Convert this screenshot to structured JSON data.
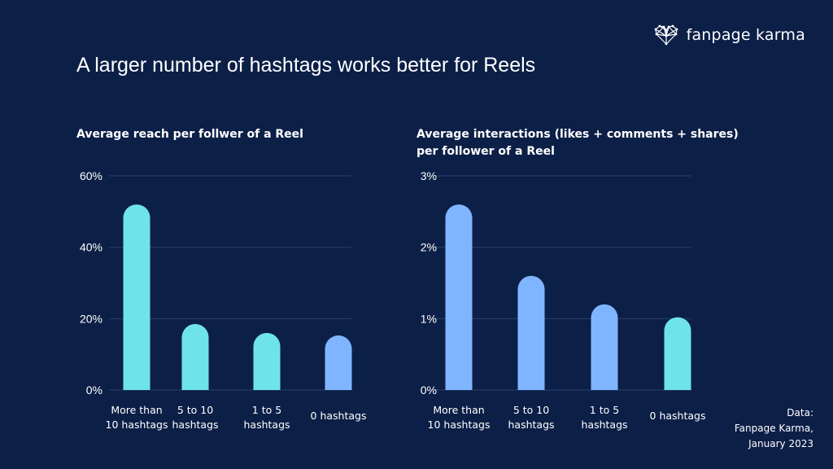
{
  "brand": {
    "name": "fanpage karma",
    "logo_icon": "heart-network-icon"
  },
  "title": "A larger number of hashtags works better for Reels",
  "colors": {
    "background": "#0c1f47",
    "cyan": "#6ee4ea",
    "blue": "#7fb5ff",
    "grid": "#2b3f68"
  },
  "footnote": {
    "line1": "Data:",
    "line2": "Fanpage Karma,",
    "line3": "January 2023"
  },
  "chart_data": [
    {
      "type": "bar",
      "title_lines": [
        "Average reach per follwer of a Reel"
      ],
      "categories": [
        [
          "More than",
          "10 hashtags"
        ],
        [
          "5 to 10",
          "hashtags"
        ],
        [
          "1 to 5",
          "hashtags"
        ],
        [
          "0 hashtags"
        ]
      ],
      "values": [
        52,
        18.5,
        16,
        15.3
      ],
      "bar_colors": [
        "#6ee4ea",
        "#6ee4ea",
        "#6ee4ea",
        "#7fb5ff"
      ],
      "ylim": [
        0,
        60
      ],
      "yticks": [
        0,
        20,
        40,
        60
      ],
      "ytick_labels": [
        "0%",
        "20%",
        "40%",
        "60%"
      ],
      "grid": true
    },
    {
      "type": "bar",
      "title_lines": [
        "Average interactions (likes + comments + shares)",
        "per follower of a Reel"
      ],
      "categories": [
        [
          "More than",
          "10 hashtags"
        ],
        [
          "5 to 10",
          "hashtags"
        ],
        [
          "1 to 5",
          "hashtags"
        ],
        [
          "0 hashtags"
        ]
      ],
      "values": [
        2.6,
        1.6,
        1.2,
        1.02
      ],
      "bar_colors": [
        "#7fb5ff",
        "#7fb5ff",
        "#7fb5ff",
        "#6ee4ea"
      ],
      "ylim": [
        0,
        3
      ],
      "yticks": [
        0,
        1,
        2,
        3
      ],
      "ytick_labels": [
        "0%",
        "1%",
        "2%",
        "3%"
      ],
      "grid": true
    }
  ]
}
